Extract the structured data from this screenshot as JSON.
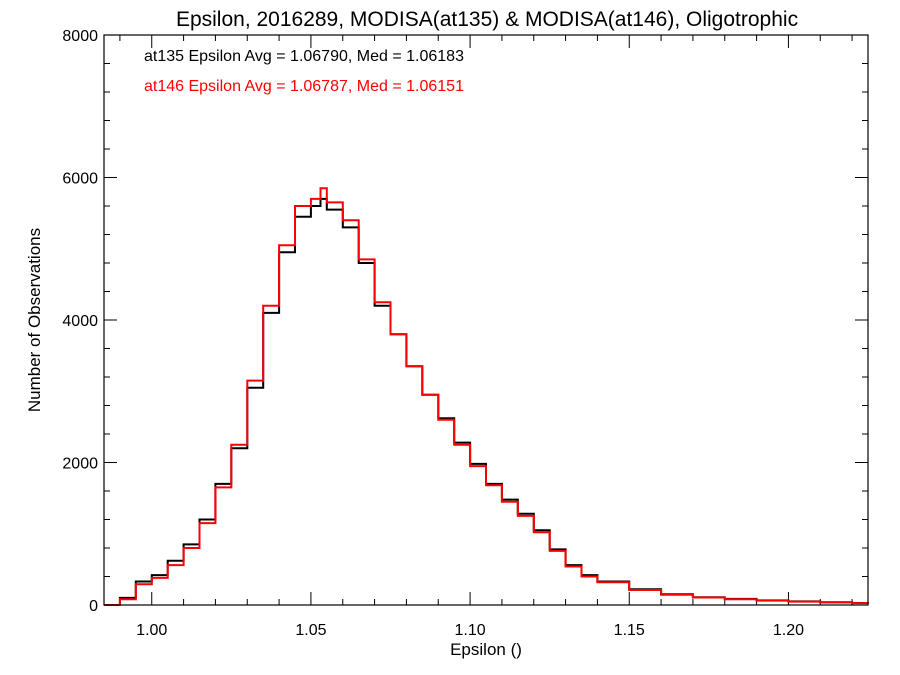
{
  "chart_data": {
    "type": "line",
    "step": true,
    "title": "Epsilon, 2016289, MODISA(at135) & MODISA(at146), Oligotrophic",
    "xlabel": "Epsilon ()",
    "ylabel": "Number of Observations",
    "xlim": [
      0.985,
      1.225
    ],
    "ylim": [
      0,
      8000
    ],
    "xticks": [
      1.0,
      1.05,
      1.1,
      1.15,
      1.2
    ],
    "xtick_labels": [
      "1.00",
      "1.05",
      "1.10",
      "1.15",
      "1.20"
    ],
    "yticks": [
      0,
      2000,
      4000,
      6000,
      8000
    ],
    "ytick_labels": [
      "0",
      "2000",
      "4000",
      "6000",
      "8000"
    ],
    "grid": false,
    "legend_position": "top-left",
    "series": [
      {
        "name": "at135 Epsilon Avg = 1.06790, Med = 1.06183",
        "color": "#000000",
        "x": [
          0.985,
          0.99,
          0.995,
          1.0,
          1.005,
          1.01,
          1.015,
          1.02,
          1.025,
          1.03,
          1.035,
          1.04,
          1.045,
          1.05,
          1.053,
          1.055,
          1.06,
          1.065,
          1.07,
          1.075,
          1.08,
          1.085,
          1.09,
          1.095,
          1.1,
          1.105,
          1.11,
          1.115,
          1.12,
          1.125,
          1.13,
          1.135,
          1.14,
          1.15,
          1.16,
          1.17,
          1.18,
          1.19,
          1.2,
          1.21,
          1.22,
          1.225
        ],
        "y": [
          0,
          100,
          330,
          420,
          620,
          850,
          1200,
          1700,
          2200,
          3050,
          4100,
          4950,
          5450,
          5600,
          5700,
          5550,
          5300,
          4800,
          4200,
          3800,
          3350,
          2950,
          2620,
          2280,
          1980,
          1700,
          1480,
          1280,
          1050,
          780,
          560,
          420,
          330,
          220,
          150,
          110,
          85,
          65,
          50,
          38,
          28,
          22
        ]
      },
      {
        "name": "at146 Epsilon Avg = 1.06787, Med = 1.06151",
        "color": "#ff0000",
        "x": [
          0.985,
          0.99,
          0.995,
          1.0,
          1.005,
          1.01,
          1.015,
          1.02,
          1.025,
          1.03,
          1.035,
          1.04,
          1.045,
          1.05,
          1.053,
          1.055,
          1.06,
          1.065,
          1.07,
          1.075,
          1.08,
          1.085,
          1.09,
          1.095,
          1.1,
          1.105,
          1.11,
          1.115,
          1.12,
          1.125,
          1.13,
          1.135,
          1.14,
          1.15,
          1.16,
          1.17,
          1.18,
          1.19,
          1.2,
          1.21,
          1.22,
          1.225
        ],
        "y": [
          0,
          80,
          290,
          380,
          560,
          800,
          1150,
          1650,
          2250,
          3150,
          4200,
          5050,
          5600,
          5700,
          5850,
          5650,
          5400,
          4850,
          4250,
          3800,
          3350,
          2950,
          2600,
          2250,
          1950,
          1680,
          1450,
          1250,
          1020,
          760,
          540,
          400,
          320,
          210,
          145,
          105,
          80,
          62,
          48,
          36,
          26,
          20
        ]
      }
    ]
  }
}
